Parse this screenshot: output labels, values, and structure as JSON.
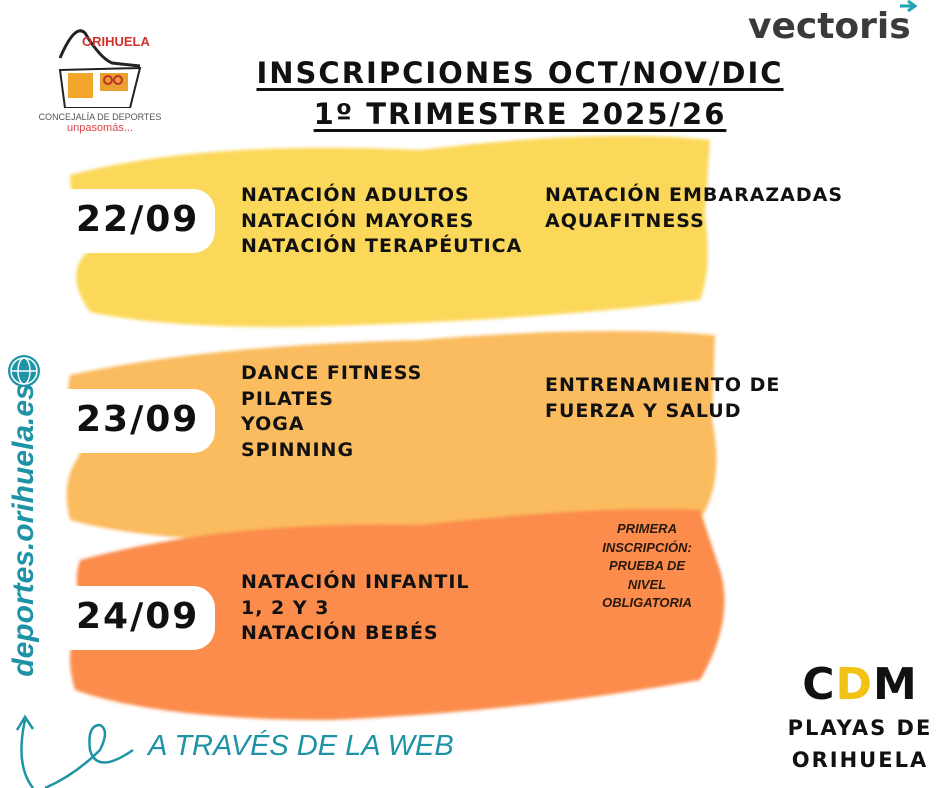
{
  "logos": {
    "concejalia": {
      "name": "ORIHUELA",
      "line1": "CONCEJALÍA DE DEPORTES",
      "line2": "unpasomás..."
    },
    "vectoris": "vectoris",
    "cdm": {
      "mark": "CDM",
      "line1": "PLAYAS DE",
      "line2": "ORIHUELA"
    }
  },
  "title": {
    "line1": "INSCRIPCIONES OCT/NOV/DIC",
    "line2": "1º TRIMESTRE 2025/26"
  },
  "blocks": [
    {
      "date": "22/09",
      "color": "#fcd85a",
      "col1": [
        "NATACIÓN ADULTOS",
        "NATACIÓN MAYORES",
        "NATACIÓN TERAPÉUTICA"
      ],
      "col2": [
        "NATACIÓN EMBARAZADAS",
        "AQUAFITNESS"
      ]
    },
    {
      "date": "23/09",
      "color": "#fbbb5f",
      "col1": [
        "DANCE FITNESS",
        "PILATES",
        "YOGA",
        "SPINNING"
      ],
      "col2": [
        "ENTRENAMIENTO DE",
        "FUERZA Y SALUD"
      ]
    },
    {
      "date": "24/09",
      "color": "#fb8c4b",
      "col1": [
        "NATACIÓN INFANTIL",
        "1, 2 Y 3",
        "NATACIÓN BEBÉS"
      ],
      "note": [
        "PRIMERA",
        "INSCRIPCIÓN:",
        "PRUEBA DE",
        "NIVEL",
        "OBLIGATORIA"
      ]
    }
  ],
  "website": {
    "url": "deportes.orihuela.es",
    "icon": "globe-www-icon",
    "cta": "A TRAVÉS DE LA WEB",
    "color": "#1e93a6"
  }
}
